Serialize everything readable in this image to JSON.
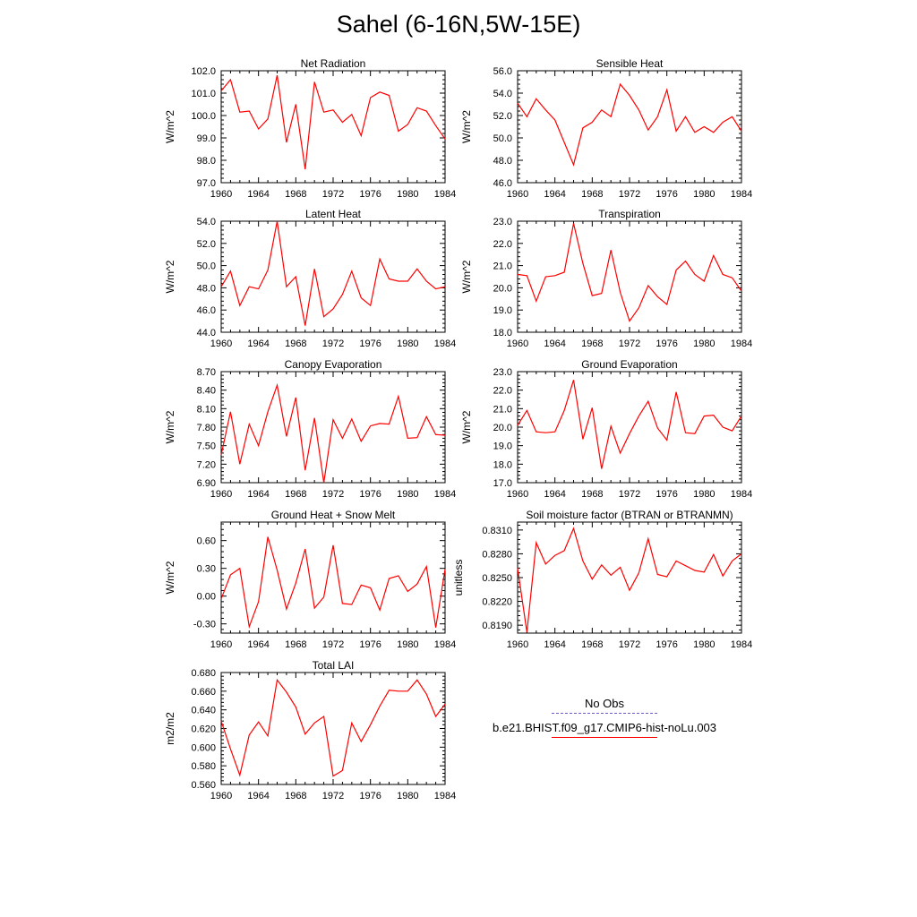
{
  "figure_title": "Sahel (6-16N,5W-15E)",
  "colors": {
    "line": "#ff0000",
    "obs_line": "#6a5acd",
    "axes": "#000000"
  },
  "legend": {
    "obs_label": "No Obs",
    "model_label": "b.e21.BHIST.f09_g17.CMIP6-hist-noLu.003"
  },
  "chart_data": [
    {
      "type": "line",
      "title": "Net Radiation",
      "ylabel": "W/m^2",
      "xlim": [
        1960,
        1984
      ],
      "ylim": [
        97.0,
        102.0
      ],
      "xticks": [
        "1960",
        "1964",
        "1968",
        "1972",
        "1976",
        "1980",
        "1984"
      ],
      "yticks": [
        "97.0",
        "98.0",
        "99.0",
        "100.0",
        "101.0",
        "102.0"
      ],
      "x": [
        1960,
        1961,
        1962,
        1963,
        1964,
        1965,
        1966,
        1967,
        1968,
        1969,
        1970,
        1971,
        1972,
        1973,
        1974,
        1975,
        1976,
        1977,
        1978,
        1979,
        1980,
        1981,
        1982,
        1983,
        1984
      ],
      "values": [
        101.1,
        101.6,
        100.15,
        100.2,
        99.4,
        99.85,
        101.8,
        98.8,
        100.5,
        97.6,
        101.5,
        100.15,
        100.25,
        99.7,
        100.05,
        99.1,
        100.8,
        101.05,
        100.9,
        99.3,
        99.6,
        100.35,
        100.2,
        99.55,
        98.95
      ]
    },
    {
      "type": "line",
      "title": "Sensible Heat",
      "ylabel": "W/m^2",
      "xlim": [
        1960,
        1984
      ],
      "ylim": [
        46.0,
        56.0
      ],
      "xticks": [
        "1960",
        "1964",
        "1968",
        "1972",
        "1976",
        "1980",
        "1984"
      ],
      "yticks": [
        "46.0",
        "48.0",
        "50.0",
        "52.0",
        "54.0",
        "56.0"
      ],
      "x": [
        1960,
        1961,
        1962,
        1963,
        1964,
        1965,
        1966,
        1967,
        1968,
        1969,
        1970,
        1971,
        1972,
        1973,
        1974,
        1975,
        1976,
        1977,
        1978,
        1979,
        1980,
        1981,
        1982,
        1983,
        1984
      ],
      "values": [
        53.1,
        51.9,
        53.5,
        52.5,
        51.6,
        49.6,
        47.6,
        50.9,
        51.4,
        52.5,
        51.9,
        54.8,
        53.8,
        52.5,
        50.7,
        51.9,
        54.3,
        50.6,
        51.9,
        50.5,
        51.0,
        50.5,
        51.4,
        51.9,
        50.6
      ]
    },
    {
      "type": "line",
      "title": "Latent Heat",
      "ylabel": "W/m^2",
      "xlim": [
        1960,
        1984
      ],
      "ylim": [
        44.0,
        54.0
      ],
      "xticks": [
        "1960",
        "1964",
        "1968",
        "1972",
        "1976",
        "1980",
        "1984"
      ],
      "yticks": [
        "44.0",
        "46.0",
        "48.0",
        "50.0",
        "52.0",
        "54.0"
      ],
      "x": [
        1960,
        1961,
        1962,
        1963,
        1964,
        1965,
        1966,
        1967,
        1968,
        1969,
        1970,
        1971,
        1972,
        1973,
        1974,
        1975,
        1976,
        1977,
        1978,
        1979,
        1980,
        1981,
        1982,
        1983,
        1984
      ],
      "values": [
        48.1,
        49.5,
        46.4,
        48.1,
        47.9,
        49.6,
        54.0,
        48.1,
        49.0,
        44.6,
        49.7,
        45.4,
        46.1,
        47.4,
        49.5,
        47.1,
        46.4,
        50.6,
        48.8,
        48.6,
        48.6,
        49.7,
        48.6,
        47.9,
        48.1
      ]
    },
    {
      "type": "line",
      "title": "Transpiration",
      "ylabel": "W/m^2",
      "xlim": [
        1960,
        1984
      ],
      "ylim": [
        18.0,
        23.0
      ],
      "xticks": [
        "1960",
        "1964",
        "1968",
        "1972",
        "1976",
        "1980",
        "1984"
      ],
      "yticks": [
        "18.0",
        "19.0",
        "20.0",
        "21.0",
        "22.0",
        "23.0"
      ],
      "x": [
        1960,
        1961,
        1962,
        1963,
        1964,
        1965,
        1966,
        1967,
        1968,
        1969,
        1970,
        1971,
        1972,
        1973,
        1974,
        1975,
        1976,
        1977,
        1978,
        1979,
        1980,
        1981,
        1982,
        1983,
        1984
      ],
      "values": [
        20.6,
        20.55,
        19.4,
        20.5,
        20.55,
        20.7,
        22.9,
        21.1,
        19.65,
        19.75,
        21.7,
        19.8,
        18.5,
        19.1,
        20.1,
        19.6,
        19.25,
        20.8,
        21.2,
        20.6,
        20.3,
        21.45,
        20.6,
        20.45,
        19.85
      ]
    },
    {
      "type": "line",
      "title": "Canopy Evaporation",
      "ylabel": "W/m^2",
      "xlim": [
        1960,
        1984
      ],
      "ylim": [
        6.9,
        8.7
      ],
      "xticks": [
        "1960",
        "1964",
        "1968",
        "1972",
        "1976",
        "1980",
        "1984"
      ],
      "yticks": [
        "6.90",
        "7.20",
        "7.50",
        "7.80",
        "8.10",
        "8.40",
        "8.70"
      ],
      "x": [
        1960,
        1961,
        1962,
        1963,
        1964,
        1965,
        1966,
        1967,
        1968,
        1969,
        1970,
        1971,
        1972,
        1973,
        1974,
        1975,
        1976,
        1977,
        1978,
        1979,
        1980,
        1981,
        1982,
        1983,
        1984
      ],
      "values": [
        7.35,
        8.05,
        7.2,
        7.85,
        7.5,
        8.05,
        8.48,
        7.65,
        8.28,
        7.1,
        7.95,
        6.9,
        7.92,
        7.62,
        7.93,
        7.57,
        7.82,
        7.86,
        7.85,
        8.3,
        7.62,
        7.63,
        7.97,
        7.68,
        7.67
      ]
    },
    {
      "type": "line",
      "title": "Ground Evaporation",
      "ylabel": "W/m^2",
      "xlim": [
        1960,
        1984
      ],
      "ylim": [
        17.0,
        23.0
      ],
      "xticks": [
        "1960",
        "1964",
        "1968",
        "1972",
        "1976",
        "1980",
        "1984"
      ],
      "yticks": [
        "17.0",
        "18.0",
        "19.0",
        "20.0",
        "21.0",
        "22.0",
        "23.0"
      ],
      "x": [
        1960,
        1961,
        1962,
        1963,
        1964,
        1965,
        1966,
        1967,
        1968,
        1969,
        1970,
        1971,
        1972,
        1973,
        1974,
        1975,
        1976,
        1977,
        1978,
        1979,
        1980,
        1981,
        1982,
        1983,
        1984
      ],
      "values": [
        20.1,
        20.9,
        19.75,
        19.7,
        19.75,
        20.9,
        22.55,
        19.35,
        21.05,
        17.75,
        20.05,
        18.6,
        19.65,
        20.6,
        21.4,
        19.95,
        19.3,
        21.9,
        19.7,
        19.65,
        20.6,
        20.65,
        20.0,
        19.8,
        20.6
      ]
    },
    {
      "type": "line",
      "title": "Ground Heat + Snow Melt",
      "ylabel": "W/m^2",
      "xlim": [
        1960,
        1984
      ],
      "ylim": [
        -0.4,
        0.8
      ],
      "xticks": [
        "1960",
        "1964",
        "1968",
        "1972",
        "1976",
        "1980",
        "1984"
      ],
      "yticks": [
        "-0.30",
        "0.00",
        "0.30",
        "0.60"
      ],
      "ytick_values": [
        -0.3,
        0.0,
        0.3,
        0.6
      ],
      "x": [
        1960,
        1961,
        1962,
        1963,
        1964,
        1965,
        1966,
        1967,
        1968,
        1969,
        1970,
        1971,
        1972,
        1973,
        1974,
        1975,
        1976,
        1977,
        1978,
        1979,
        1980,
        1981,
        1982,
        1983,
        1984
      ],
      "values": [
        -0.03,
        0.23,
        0.3,
        -0.33,
        -0.06,
        0.64,
        0.28,
        -0.14,
        0.14,
        0.51,
        -0.13,
        -0.01,
        0.55,
        -0.08,
        -0.09,
        0.12,
        0.09,
        -0.15,
        0.19,
        0.22,
        0.05,
        0.13,
        0.32,
        -0.34,
        0.29
      ]
    },
    {
      "type": "line",
      "title": "Soil moisture factor (BTRAN or BTRANMN)",
      "ylabel": "unitless",
      "xlim": [
        1960,
        1984
      ],
      "ylim": [
        0.818,
        0.832
      ],
      "xticks": [
        "1960",
        "1964",
        "1968",
        "1972",
        "1976",
        "1980",
        "1984"
      ],
      "yticks": [
        "0.8190",
        "0.8220",
        "0.8250",
        "0.8280",
        "0.8310"
      ],
      "ytick_values": [
        0.819,
        0.822,
        0.825,
        0.828,
        0.831
      ],
      "x": [
        1960,
        1961,
        1962,
        1963,
        1964,
        1965,
        1966,
        1967,
        1968,
        1969,
        1970,
        1971,
        1972,
        1973,
        1974,
        1975,
        1976,
        1977,
        1978,
        1979,
        1980,
        1981,
        1982,
        1983,
        1984
      ],
      "values": [
        0.8262,
        0.8181,
        0.8294,
        0.8267,
        0.8278,
        0.8284,
        0.8312,
        0.8271,
        0.8248,
        0.8266,
        0.8253,
        0.8263,
        0.8234,
        0.8256,
        0.8299,
        0.8254,
        0.8251,
        0.8271,
        0.8265,
        0.8259,
        0.8257,
        0.8279,
        0.8252,
        0.8271,
        0.828
      ]
    },
    {
      "type": "line",
      "title": "Total LAI",
      "ylabel": "m2/m2",
      "xlim": [
        1960,
        1984
      ],
      "ylim": [
        0.56,
        0.68
      ],
      "xticks": [
        "1960",
        "1964",
        "1968",
        "1972",
        "1976",
        "1980",
        "1984"
      ],
      "yticks": [
        "0.560",
        "0.580",
        "0.600",
        "0.620",
        "0.640",
        "0.660",
        "0.680"
      ],
      "x": [
        1960,
        1961,
        1962,
        1963,
        1964,
        1965,
        1966,
        1967,
        1968,
        1969,
        1970,
        1971,
        1972,
        1973,
        1974,
        1975,
        1976,
        1977,
        1978,
        1979,
        1980,
        1981,
        1982,
        1983,
        1984
      ],
      "values": [
        0.628,
        0.598,
        0.57,
        0.613,
        0.627,
        0.612,
        0.672,
        0.659,
        0.643,
        0.614,
        0.626,
        0.633,
        0.569,
        0.575,
        0.626,
        0.606,
        0.624,
        0.644,
        0.661,
        0.66,
        0.66,
        0.672,
        0.657,
        0.633,
        0.646
      ]
    }
  ]
}
